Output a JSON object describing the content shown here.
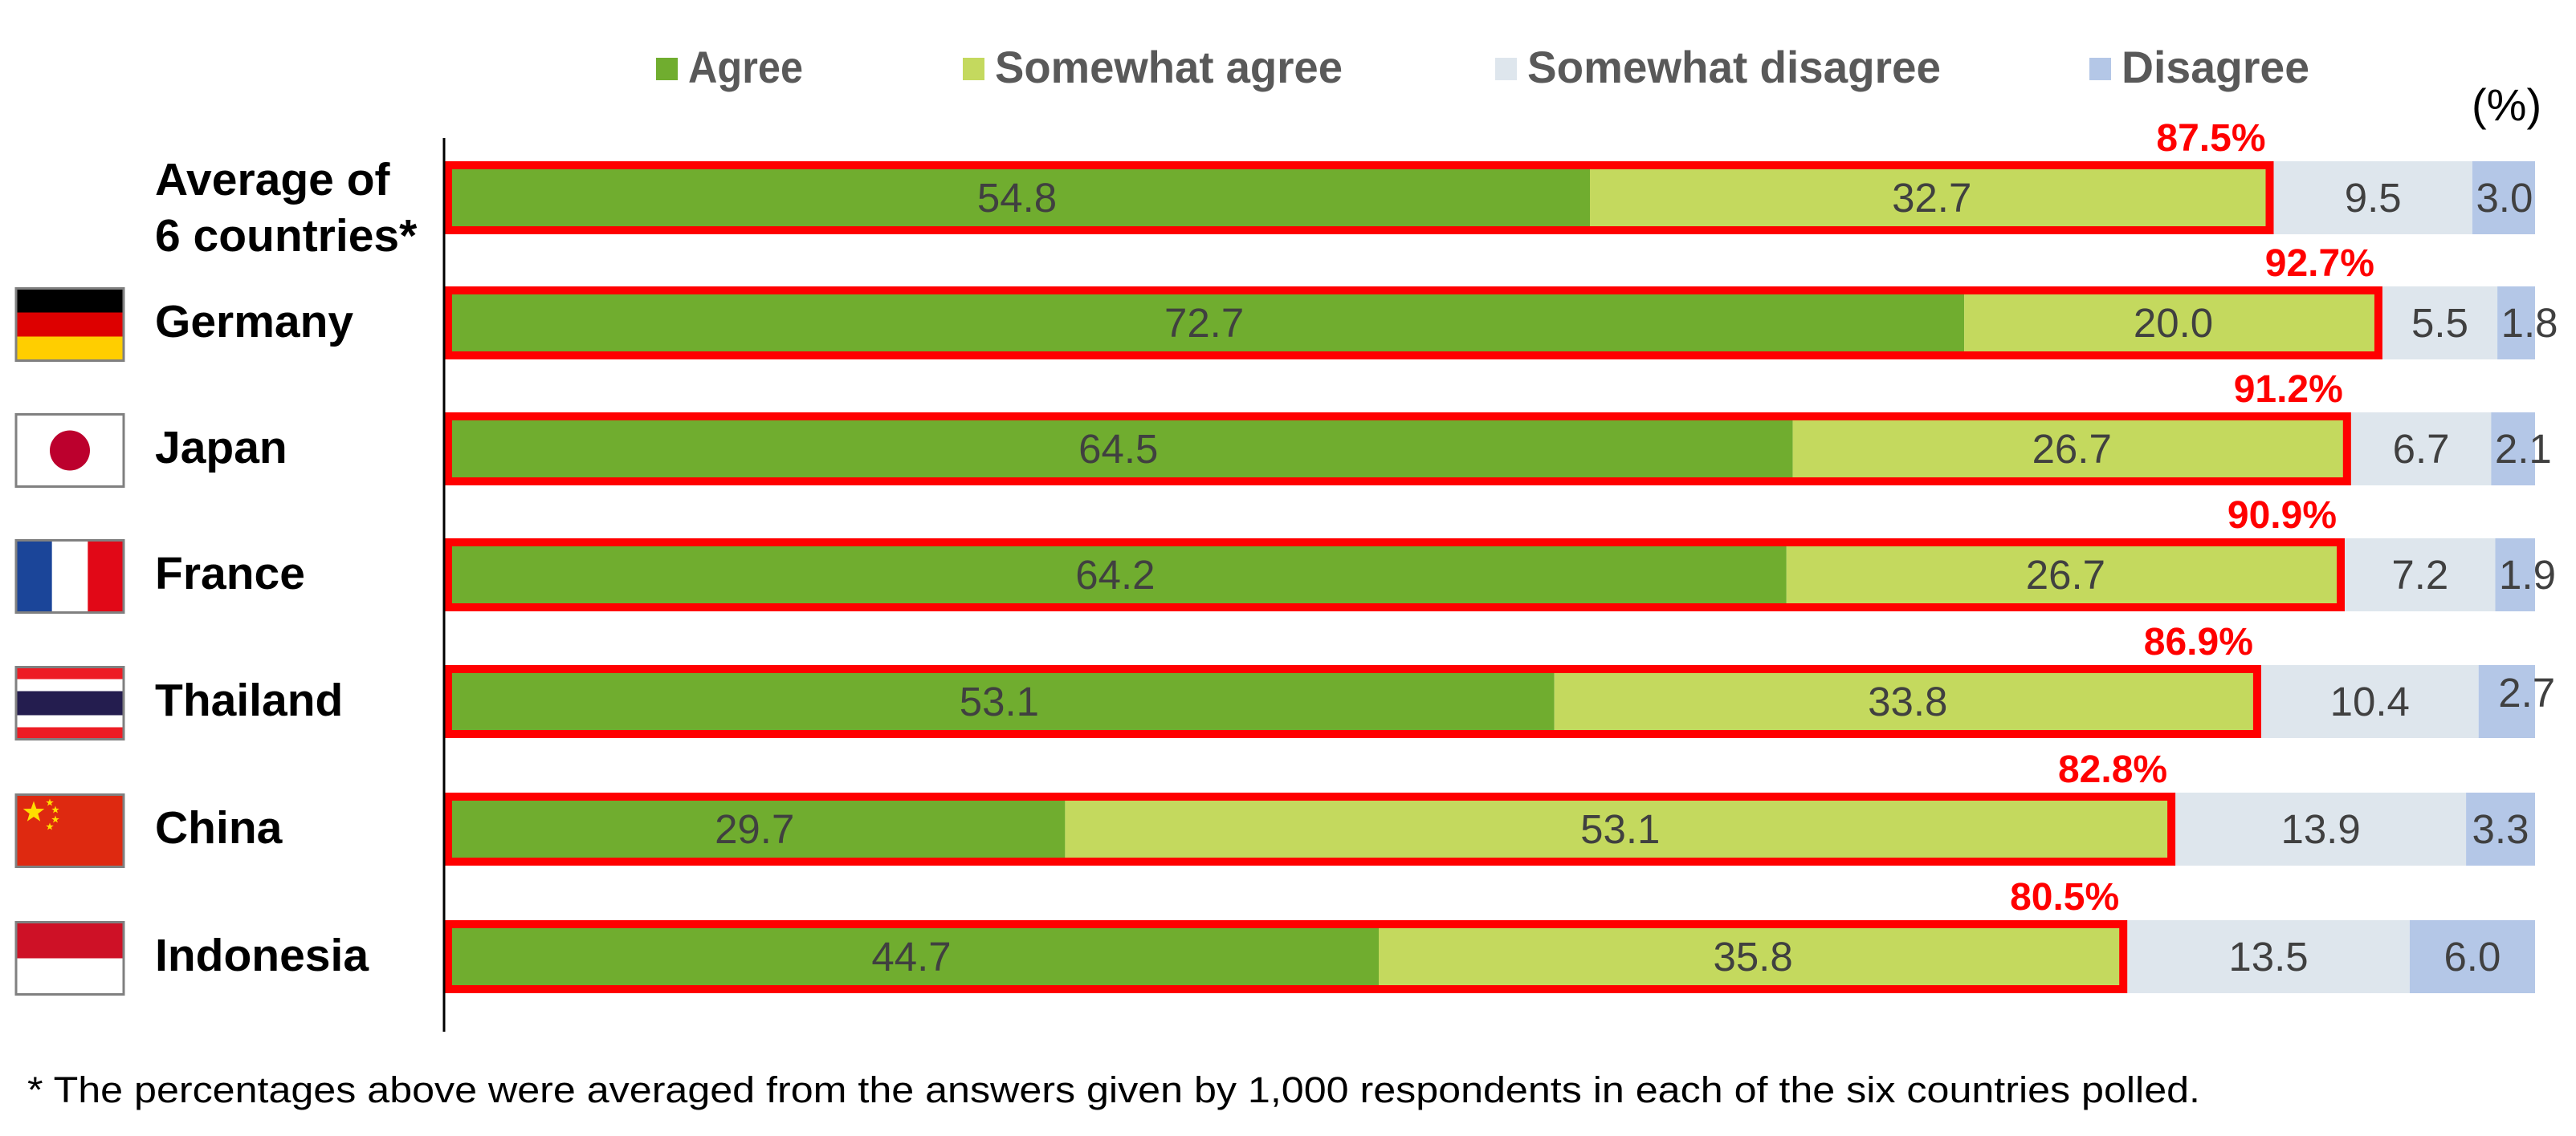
{
  "chart_data": {
    "type": "bar",
    "orientation": "horizontal",
    "stacked": true,
    "unit_label": "(%)",
    "xlim": [
      0,
      100
    ],
    "grid": false,
    "legend_position": "top",
    "categories": [
      "Average of\n6 countries*",
      "Germany",
      "Japan",
      "France",
      "Thailand",
      "China",
      "Indonesia"
    ],
    "category_flags": [
      "",
      "germany-flag",
      "japan-flag",
      "france-flag",
      "thailand-flag",
      "china-flag",
      "indonesia-flag"
    ],
    "series": [
      {
        "name": "Agree",
        "color": "#70AD2F",
        "values": [
          54.8,
          72.7,
          64.5,
          64.2,
          53.1,
          29.7,
          44.7
        ]
      },
      {
        "name": "Somewhat agree",
        "color": "#C4D95E",
        "values": [
          32.7,
          20.0,
          26.7,
          26.7,
          33.8,
          53.1,
          35.8
        ]
      },
      {
        "name": "Somewhat disagree",
        "color": "#DEE6ED",
        "values": [
          9.5,
          5.5,
          6.7,
          7.2,
          10.4,
          13.9,
          13.5
        ]
      },
      {
        "name": "Disagree",
        "color": "#B4C7E7",
        "values": [
          3.0,
          1.8,
          2.1,
          1.9,
          2.7,
          3.3,
          6.0
        ]
      }
    ],
    "value_labels": [
      [
        "54.8",
        "32.7",
        "9.5",
        "3.0"
      ],
      [
        "72.7",
        "20.0",
        "5.5",
        "1.8"
      ],
      [
        "64.5",
        "26.7",
        "6.7",
        "2.1"
      ],
      [
        "64.2",
        "26.7",
        "7.2",
        "1.9"
      ],
      [
        "53.1",
        "33.8",
        "10.4",
        "2.7"
      ],
      [
        "29.7",
        "53.1",
        "13.9",
        "3.3"
      ],
      [
        "44.7",
        "35.8",
        "13.5",
        "6.0"
      ]
    ],
    "highlight": {
      "description_series": [
        "Agree",
        "Somewhat agree"
      ],
      "color": "#FF0000",
      "totals": [
        87.5,
        92.7,
        91.2,
        90.9,
        86.9,
        82.8,
        80.5
      ],
      "total_labels": [
        "87.5%",
        "92.7%",
        "91.2%",
        "90.9%",
        "86.9%",
        "82.8%",
        "80.5%"
      ]
    },
    "footnote": "* The percentages above were averaged from the answers given by 1,000 respondents in each of the six countries polled."
  }
}
